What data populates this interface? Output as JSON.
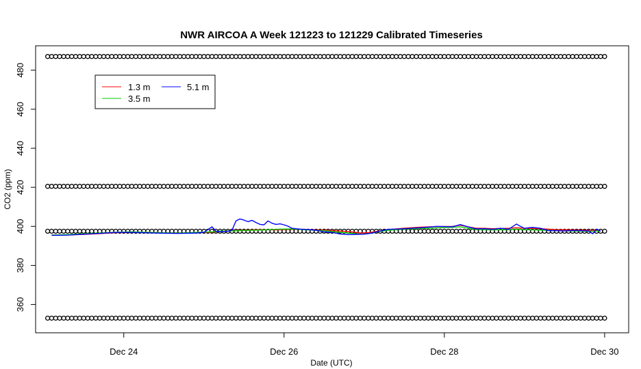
{
  "chart_data": {
    "type": "line",
    "title": "NWR AIRCOA A  Week 121223 to 121229  Calibrated Timeseries",
    "xlabel": "Date (UTC)",
    "ylabel": "CO2 (ppm)",
    "x_ticks": [
      {
        "x": 24,
        "label": "Dec 24"
      },
      {
        "x": 26,
        "label": "Dec 26"
      },
      {
        "x": 28,
        "label": "Dec 28"
      },
      {
        "x": 30,
        "label": "Dec 30"
      }
    ],
    "y_ticks": [
      360,
      380,
      400,
      420,
      440,
      460,
      480
    ],
    "xlim": [
      22.9,
      30.3
    ],
    "ylim": [
      345.5,
      492.5
    ],
    "x_unit": "days (December 2012)",
    "series": [
      {
        "name": "1.3 m",
        "color": "#ff0000",
        "points": [
          [
            23.1,
            395.6
          ],
          [
            23.3,
            395.6
          ],
          [
            23.5,
            395.9
          ],
          [
            23.7,
            396.3
          ],
          [
            23.9,
            396.8
          ],
          [
            24.1,
            397.0
          ],
          [
            24.3,
            397.0
          ],
          [
            24.5,
            396.7
          ],
          [
            24.7,
            396.6
          ],
          [
            24.9,
            396.8
          ],
          [
            25.1,
            397.0
          ],
          [
            25.2,
            397.5
          ],
          [
            25.35,
            397.8
          ],
          [
            25.5,
            398.0
          ],
          [
            25.7,
            398.3
          ],
          [
            25.9,
            398.2
          ],
          [
            26.1,
            398.5
          ],
          [
            26.3,
            398.3
          ],
          [
            26.5,
            398.1
          ],
          [
            26.7,
            397.6
          ],
          [
            26.85,
            397.2
          ],
          [
            26.95,
            396.6
          ],
          [
            27.05,
            396.8
          ],
          [
            27.15,
            397.4
          ],
          [
            27.3,
            398.3
          ],
          [
            27.5,
            399.1
          ],
          [
            27.7,
            399.6
          ],
          [
            27.9,
            399.9
          ],
          [
            28.1,
            400.0
          ],
          [
            28.2,
            400.6
          ],
          [
            28.3,
            399.8
          ],
          [
            28.4,
            399.0
          ],
          [
            28.5,
            399.0
          ],
          [
            28.6,
            398.8
          ],
          [
            28.8,
            399.0
          ],
          [
            28.9,
            399.3
          ],
          [
            29.0,
            399.0
          ],
          [
            29.2,
            398.8
          ],
          [
            29.4,
            398.3
          ],
          [
            29.6,
            398.2
          ],
          [
            29.8,
            398.0
          ],
          [
            29.95,
            397.9
          ]
        ]
      },
      {
        "name": "3.5 m",
        "color": "#00cc00",
        "points": [
          [
            23.1,
            395.6
          ],
          [
            23.3,
            395.8
          ],
          [
            23.5,
            396.2
          ],
          [
            23.7,
            396.6
          ],
          [
            23.9,
            397.0
          ],
          [
            24.1,
            397.2
          ],
          [
            24.3,
            397.0
          ],
          [
            24.5,
            396.7
          ],
          [
            24.7,
            396.6
          ],
          [
            24.9,
            396.9
          ],
          [
            25.1,
            397.2
          ],
          [
            25.2,
            397.6
          ],
          [
            25.35,
            397.7
          ],
          [
            25.5,
            397.9
          ],
          [
            25.7,
            398.1
          ],
          [
            25.9,
            398.5
          ],
          [
            26.1,
            398.7
          ],
          [
            26.3,
            398.2
          ],
          [
            26.5,
            397.8
          ],
          [
            26.7,
            397.0
          ],
          [
            26.85,
            396.4
          ],
          [
            26.95,
            396.0
          ],
          [
            27.05,
            396.3
          ],
          [
            27.15,
            397.2
          ],
          [
            27.3,
            398.0
          ],
          [
            27.5,
            398.6
          ],
          [
            27.7,
            398.9
          ],
          [
            27.9,
            399.2
          ],
          [
            28.1,
            399.5
          ],
          [
            28.2,
            399.8
          ],
          [
            28.3,
            399.1
          ],
          [
            28.4,
            398.4
          ],
          [
            28.5,
            398.3
          ],
          [
            28.6,
            398.2
          ],
          [
            28.8,
            398.3
          ],
          [
            28.9,
            398.6
          ],
          [
            29.0,
            398.3
          ],
          [
            29.2,
            398.1
          ],
          [
            29.4,
            397.8
          ],
          [
            29.6,
            397.6
          ],
          [
            29.8,
            397.5
          ],
          [
            29.95,
            397.6
          ]
        ]
      },
      {
        "name": "5.1 m",
        "color": "#0000ff",
        "points": [
          [
            23.1,
            395.4
          ],
          [
            23.3,
            395.5
          ],
          [
            23.5,
            396.0
          ],
          [
            23.7,
            396.4
          ],
          [
            23.9,
            396.9
          ],
          [
            24.1,
            396.9
          ],
          [
            24.3,
            396.7
          ],
          [
            24.5,
            396.5
          ],
          [
            24.7,
            396.4
          ],
          [
            24.9,
            396.6
          ],
          [
            25.0,
            397.0
          ],
          [
            25.1,
            399.8
          ],
          [
            25.15,
            397.5
          ],
          [
            25.2,
            397.3
          ],
          [
            25.3,
            397.5
          ],
          [
            25.35,
            398.0
          ],
          [
            25.4,
            402.8
          ],
          [
            25.45,
            403.8
          ],
          [
            25.5,
            403.2
          ],
          [
            25.55,
            402.4
          ],
          [
            25.6,
            403.1
          ],
          [
            25.65,
            402.0
          ],
          [
            25.7,
            401.0
          ],
          [
            25.75,
            400.8
          ],
          [
            25.8,
            402.8
          ],
          [
            25.85,
            401.6
          ],
          [
            25.9,
            401.0
          ],
          [
            25.95,
            401.3
          ],
          [
            26.0,
            400.8
          ],
          [
            26.05,
            400.1
          ],
          [
            26.1,
            399.0
          ],
          [
            26.2,
            398.6
          ],
          [
            26.3,
            398.4
          ],
          [
            26.4,
            398.0
          ],
          [
            26.5,
            397.2
          ],
          [
            26.6,
            396.9
          ],
          [
            26.7,
            396.1
          ],
          [
            26.8,
            395.8
          ],
          [
            26.9,
            395.9
          ],
          [
            27.0,
            396.0
          ],
          [
            27.1,
            396.6
          ],
          [
            27.2,
            397.6
          ],
          [
            27.3,
            398.5
          ],
          [
            27.4,
            398.6
          ],
          [
            27.5,
            398.8
          ],
          [
            27.6,
            399.1
          ],
          [
            27.7,
            399.3
          ],
          [
            27.8,
            399.6
          ],
          [
            27.9,
            400.0
          ],
          [
            28.0,
            399.9
          ],
          [
            28.1,
            399.8
          ],
          [
            28.2,
            400.9
          ],
          [
            28.3,
            399.7
          ],
          [
            28.4,
            398.7
          ],
          [
            28.5,
            398.8
          ],
          [
            28.6,
            398.5
          ],
          [
            28.7,
            399.0
          ],
          [
            28.8,
            398.5
          ],
          [
            28.9,
            401.2
          ],
          [
            28.95,
            400.0
          ],
          [
            29.0,
            399.0
          ],
          [
            29.1,
            399.5
          ],
          [
            29.2,
            399.0
          ],
          [
            29.3,
            397.8
          ],
          [
            29.4,
            397.8
          ],
          [
            29.5,
            397.7
          ],
          [
            29.6,
            397.9
          ],
          [
            29.7,
            397.8
          ],
          [
            29.8,
            397.7
          ],
          [
            29.85,
            396.2
          ],
          [
            29.9,
            398.6
          ],
          [
            29.95,
            397.5
          ]
        ]
      }
    ],
    "flag_markers": {
      "marker": "circle",
      "color": "#000000",
      "levels": [
        487,
        420.5,
        397.5,
        353
      ],
      "segments": [
        [
          23.05,
          27.0
        ],
        [
          27.05,
          30.0
        ]
      ],
      "spacing_days": 0.05
    },
    "legend": {
      "position": "top-left",
      "items": [
        {
          "label": "1.3 m",
          "color": "#ff0000"
        },
        {
          "label": "5.1 m",
          "color": "#0000ff"
        },
        {
          "label": "3.5 m",
          "color": "#00cc00"
        }
      ]
    },
    "grid": false
  }
}
